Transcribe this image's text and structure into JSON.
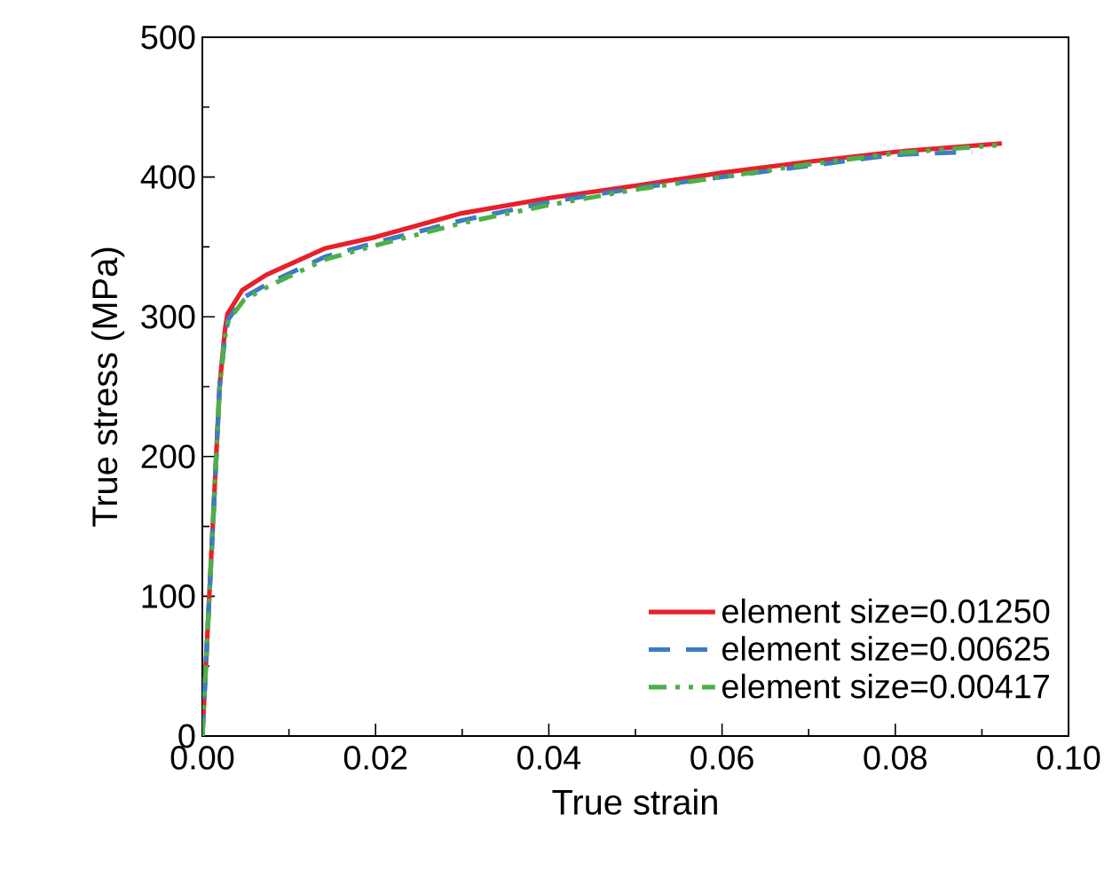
{
  "chart_data": {
    "type": "line",
    "xlabel": "True strain",
    "ylabel": "True stress (MPa)",
    "xlim": [
      0,
      0.1
    ],
    "ylim": [
      0,
      500
    ],
    "xticks": [
      {
        "value": 0,
        "label": "0.00"
      },
      {
        "value": 0.02,
        "label": "0.02"
      },
      {
        "value": 0.04,
        "label": "0.04"
      },
      {
        "value": 0.06,
        "label": "0.06"
      },
      {
        "value": 0.08,
        "label": "0.08"
      },
      {
        "value": 0.1,
        "label": "0.10"
      }
    ],
    "yticks": [
      0,
      100,
      200,
      300,
      400,
      500
    ],
    "legend": "bottom right",
    "grid": false,
    "marker": "none",
    "series": [
      {
        "name": "element size=0.01250",
        "color": "#e8202a",
        "line_style": "solid",
        "x": [
          0,
          0.0012,
          0.002,
          0.0026,
          0.0029,
          0.0046,
          0.0074,
          0.0142,
          0.02,
          0.0299,
          0.0401,
          0.0503,
          0.0599,
          0.0701,
          0.08,
          0.0923
        ],
        "values": [
          0,
          150,
          251,
          290,
          302,
          319,
          330,
          349,
          357,
          374,
          385,
          394,
          403,
          411,
          418,
          424
        ]
      },
      {
        "name": "element size=0.00625",
        "color": "#3a7dc4",
        "line_style": "dashed",
        "x": [
          0,
          0.0012,
          0.002,
          0.0026,
          0.003,
          0.0048,
          0.008,
          0.0142,
          0.02,
          0.03,
          0.04,
          0.05,
          0.06,
          0.07,
          0.08,
          0.0889
        ],
        "values": [
          0,
          148,
          250,
          285,
          298,
          314,
          325,
          343,
          353,
          369,
          382,
          392,
          400,
          408,
          416,
          418
        ]
      },
      {
        "name": "element size=0.00417",
        "color": "#4daf4a",
        "line_style": "dashdotdotted",
        "x": [
          0,
          0.0012,
          0.002,
          0.0026,
          0.003,
          0.0048,
          0.008,
          0.0142,
          0.02,
          0.03,
          0.04,
          0.05,
          0.06,
          0.07,
          0.08,
          0.0923
        ],
        "values": [
          0,
          148,
          250,
          285,
          297,
          312,
          323,
          341,
          351,
          367,
          380,
          391,
          400,
          409,
          417,
          423
        ]
      }
    ]
  }
}
